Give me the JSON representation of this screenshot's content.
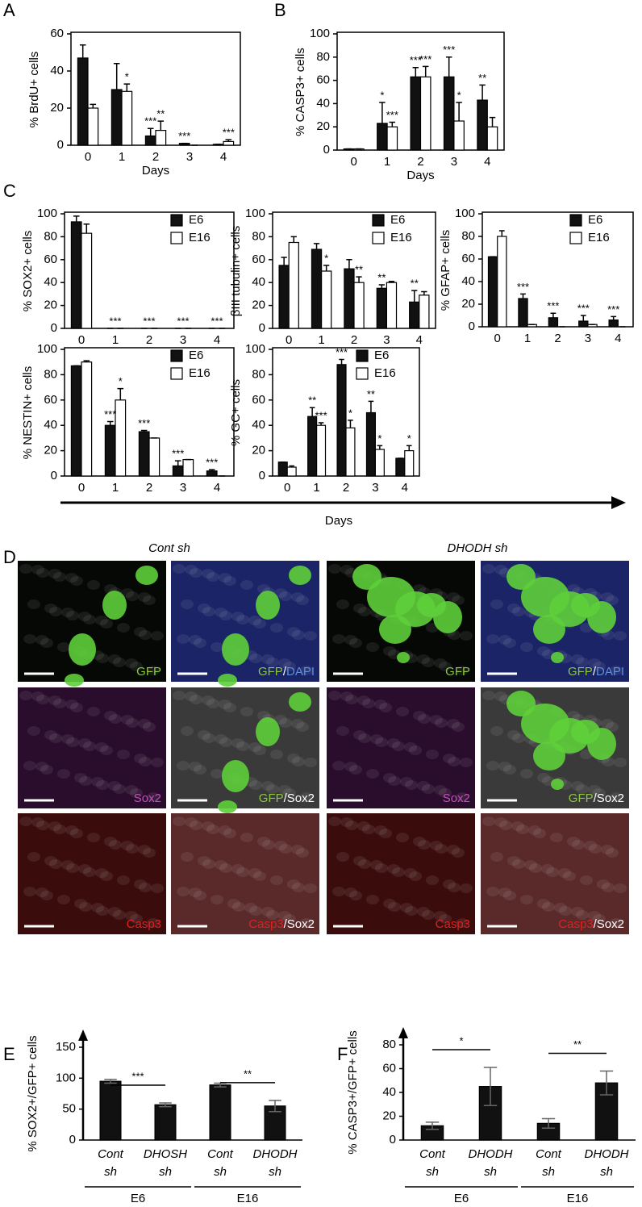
{
  "panel_labels": [
    "A",
    "B",
    "C",
    "D",
    "E",
    "F"
  ],
  "days_arrow_label": "Days",
  "panel_d": {
    "titles": [
      "Cont sh",
      "DHODH sh"
    ],
    "images": [
      {
        "bg": "#050805",
        "gfp": true,
        "label": [
          {
            "text": "GFP",
            "color": "#8cc63f"
          }
        ]
      },
      {
        "bg": "#1b2466",
        "gfp": true,
        "label": [
          {
            "text": "GFP",
            "color": "#8cc63f"
          },
          {
            "text": "/",
            "color": "#ffffff"
          },
          {
            "text": "DAPI",
            "color": "#5b8fe0"
          }
        ]
      },
      {
        "bg": "#050805",
        "gfp": true,
        "label": [
          {
            "text": "GFP",
            "color": "#8cc63f"
          }
        ]
      },
      {
        "bg": "#1b2466",
        "gfp": true,
        "label": [
          {
            "text": "GFP",
            "color": "#8cc63f"
          },
          {
            "text": "/",
            "color": "#ffffff"
          },
          {
            "text": "DAPI",
            "color": "#5b8fe0"
          }
        ]
      },
      {
        "bg": "#2a0c2c",
        "gfp": false,
        "label": [
          {
            "text": "Sox2",
            "color": "#c050c0"
          }
        ]
      },
      {
        "bg": "#3a3a3a",
        "gfp": true,
        "label": [
          {
            "text": "GFP",
            "color": "#8cc63f"
          },
          {
            "text": "/",
            "color": "#ffffff"
          },
          {
            "text": "Sox2",
            "color": "#ffffff"
          }
        ]
      },
      {
        "bg": "#2a0c2c",
        "gfp": false,
        "label": [
          {
            "text": "Sox2",
            "color": "#c050c0"
          }
        ]
      },
      {
        "bg": "#3a3a3a",
        "gfp": true,
        "label": [
          {
            "text": "GFP",
            "color": "#8cc63f"
          },
          {
            "text": "/",
            "color": "#ffffff"
          },
          {
            "text": "Sox2",
            "color": "#ffffff"
          }
        ]
      },
      {
        "bg": "#3a0c0c",
        "gfp": false,
        "label": [
          {
            "text": "Casp3",
            "color": "#e02020"
          }
        ]
      },
      {
        "bg": "#5a2a2a",
        "gfp": false,
        "label": [
          {
            "text": "Casp3",
            "color": "#e02020"
          },
          {
            "text": "/",
            "color": "#ffffff"
          },
          {
            "text": "Sox2",
            "color": "#ffffff"
          }
        ]
      },
      {
        "bg": "#3a0c0c",
        "gfp": false,
        "label": [
          {
            "text": "Casp3",
            "color": "#e02020"
          }
        ]
      },
      {
        "bg": "#5a2a2a",
        "gfp": false,
        "label": [
          {
            "text": "Casp3",
            "color": "#e02020"
          },
          {
            "text": "/",
            "color": "#ffffff"
          },
          {
            "text": "Sox2",
            "color": "#ffffff"
          }
        ]
      }
    ]
  },
  "chart_data": [
    {
      "type": "bar",
      "frame": true,
      "ylabel": "% BrdU+ cells",
      "xlabel": "Days",
      "categories": [
        "0",
        "1",
        "2",
        "3",
        "4"
      ],
      "ylim": [
        0,
        60
      ],
      "yticks": [
        0,
        20,
        40,
        60
      ],
      "errorbars": "up",
      "error_color": "#000000",
      "series": [
        {
          "color": "#111111",
          "values": [
            47,
            30,
            5,
            1,
            0.5
          ],
          "errors": [
            7,
            14,
            4,
            0,
            0
          ]
        },
        {
          "color": "#ffffff",
          "values": [
            20,
            29,
            8,
            0,
            2
          ],
          "errors": [
            2,
            4,
            5,
            0,
            1
          ]
        }
      ],
      "annotations": [
        {
          "text": "*",
          "series": 1,
          "index": 1
        },
        {
          "text": "***",
          "series": 0,
          "index": 2
        },
        {
          "text": "**",
          "series": 1,
          "index": 2
        },
        {
          "text": "***",
          "series": 0,
          "index": 3
        },
        {
          "text": "***",
          "series": 1,
          "index": 4
        }
      ]
    },
    {
      "type": "bar",
      "frame": true,
      "ylabel": "% CASP3+ cells",
      "xlabel": "Days",
      "categories": [
        "0",
        "1",
        "2",
        "3",
        "4"
      ],
      "ylim": [
        0,
        100
      ],
      "yticks": [
        0,
        20,
        40,
        60,
        80,
        100
      ],
      "errorbars": "up",
      "error_color": "#000000",
      "series": [
        {
          "color": "#111111",
          "values": [
            1,
            23,
            63,
            63,
            43
          ],
          "errors": [
            0,
            18,
            8,
            17,
            13
          ]
        },
        {
          "color": "#ffffff",
          "values": [
            1,
            20,
            63,
            25,
            20
          ],
          "errors": [
            0,
            4,
            9,
            16,
            8
          ]
        }
      ],
      "annotations": [
        {
          "text": "*",
          "series": 0,
          "index": 1
        },
        {
          "text": "***",
          "series": 1,
          "index": 1
        },
        {
          "text": "***",
          "series": 0,
          "index": 2
        },
        {
          "text": "***",
          "series": 1,
          "index": 2
        },
        {
          "text": "***",
          "series": 0,
          "index": 3
        },
        {
          "text": "*",
          "series": 1,
          "index": 3
        },
        {
          "text": "**",
          "series": 0,
          "index": 4
        }
      ]
    },
    {
      "type": "bar",
      "frame": true,
      "ylabel": "% SOX2+ cells",
      "categories": [
        "0",
        "1",
        "2",
        "3",
        "4"
      ],
      "ylim": [
        0,
        100
      ],
      "yticks": [
        0,
        20,
        40,
        60,
        80,
        100
      ],
      "errorbars": "up",
      "error_color": "#000000",
      "legend": "upper right",
      "series": [
        {
          "name": "E6",
          "color": "#111111",
          "values": [
            93,
            0,
            0,
            0,
            0
          ],
          "errors": [
            5,
            0,
            0,
            0,
            0
          ]
        },
        {
          "name": "E16",
          "color": "#ffffff",
          "values": [
            83,
            0,
            0,
            0,
            0
          ],
          "errors": [
            8,
            0,
            0,
            0,
            0
          ]
        }
      ],
      "annotations": [
        {
          "text": "***",
          "index": 1
        },
        {
          "text": "***",
          "index": 2
        },
        {
          "text": "***",
          "index": 3
        },
        {
          "text": "***",
          "index": 4
        }
      ]
    },
    {
      "type": "bar",
      "frame": true,
      "ylabel": "βIII tubulin+ cells",
      "categories": [
        "0",
        "1",
        "2",
        "3",
        "4"
      ],
      "ylim": [
        0,
        100
      ],
      "yticks": [
        0,
        20,
        40,
        60,
        80,
        100
      ],
      "errorbars": "up",
      "error_color": "#000000",
      "legend": "upper right",
      "series": [
        {
          "name": "E6",
          "color": "#111111",
          "values": [
            55,
            69,
            52,
            35,
            23
          ],
          "errors": [
            7,
            5,
            8,
            3,
            10
          ]
        },
        {
          "name": "E16",
          "color": "#ffffff",
          "values": [
            75,
            50,
            40,
            40,
            29
          ],
          "errors": [
            5,
            5,
            5,
            1,
            3
          ]
        }
      ],
      "annotations": [
        {
          "text": "*",
          "series": 1,
          "index": 1
        },
        {
          "text": "**",
          "series": 1,
          "index": 2
        },
        {
          "text": "**",
          "series": 0,
          "index": 3
        },
        {
          "text": "**",
          "series": 0,
          "index": 4
        }
      ]
    },
    {
      "type": "bar",
      "frame": true,
      "ylabel": "% GFAP+ cells",
      "categories": [
        "0",
        "1",
        "2",
        "3",
        "4"
      ],
      "ylim": [
        0,
        100
      ],
      "yticks": [
        0,
        20,
        40,
        60,
        80,
        100
      ],
      "errorbars": "up",
      "error_color": "#000000",
      "legend": "upper right",
      "series": [
        {
          "name": "E6",
          "color": "#111111",
          "values": [
            62,
            25,
            8,
            5,
            6
          ],
          "errors": [
            0,
            4,
            4,
            5,
            3
          ]
        },
        {
          "name": "E16",
          "color": "#ffffff",
          "values": [
            80,
            2,
            0,
            2,
            0
          ],
          "errors": [
            5,
            0,
            0,
            0,
            0
          ]
        }
      ],
      "annotations": [
        {
          "text": "***",
          "series": 0,
          "index": 1
        },
        {
          "text": "***",
          "series": 0,
          "index": 2
        },
        {
          "text": "***",
          "series": 0,
          "index": 3
        },
        {
          "text": "***",
          "series": 0,
          "index": 4
        }
      ]
    },
    {
      "type": "bar",
      "frame": true,
      "ylabel": "% NESTIN+ cells",
      "categories": [
        "0",
        "1",
        "2",
        "3",
        "4"
      ],
      "ylim": [
        0,
        100
      ],
      "yticks": [
        0,
        20,
        40,
        60,
        80,
        100
      ],
      "errorbars": "up",
      "error_color": "#000000",
      "legend": "upper right",
      "series": [
        {
          "name": "E6",
          "color": "#111111",
          "values": [
            87,
            40,
            35,
            8,
            4
          ],
          "errors": [
            0,
            3,
            1,
            4,
            1
          ]
        },
        {
          "name": "E16",
          "color": "#ffffff",
          "values": [
            90,
            60,
            30,
            13,
            0
          ],
          "errors": [
            1,
            9,
            0,
            0,
            0
          ]
        }
      ],
      "annotations": [
        {
          "text": "***",
          "series": 0,
          "index": 1
        },
        {
          "text": "*",
          "series": 1,
          "index": 1
        },
        {
          "text": "***",
          "series": 0,
          "index": 2
        },
        {
          "text": "***",
          "series": 0,
          "index": 3
        },
        {
          "text": "***",
          "series": 0,
          "index": 4
        }
      ]
    },
    {
      "type": "bar",
      "frame": true,
      "ylabel": "% GC+ cells",
      "categories": [
        "0",
        "1",
        "2",
        "3",
        "4"
      ],
      "ylim": [
        0,
        100
      ],
      "yticks": [
        0,
        20,
        40,
        60,
        80,
        100
      ],
      "errorbars": "up",
      "error_color": "#000000",
      "legend": "upper right",
      "series": [
        {
          "name": "E6",
          "color": "#111111",
          "values": [
            11,
            47,
            88,
            50,
            14
          ],
          "errors": [
            0,
            7,
            4,
            9,
            0
          ]
        },
        {
          "name": "E16",
          "color": "#ffffff",
          "values": [
            7,
            40,
            38,
            21,
            20
          ],
          "errors": [
            1,
            2,
            6,
            3,
            4
          ]
        }
      ],
      "annotations": [
        {
          "text": "**",
          "series": 0,
          "index": 1
        },
        {
          "text": "***",
          "series": 1,
          "index": 1
        },
        {
          "text": "***",
          "series": 0,
          "index": 2
        },
        {
          "text": "*",
          "series": 1,
          "index": 2
        },
        {
          "text": "**",
          "series": 0,
          "index": 3
        },
        {
          "text": "*",
          "series": 1,
          "index": 3
        },
        {
          "text": "*",
          "series": 1,
          "index": 4
        }
      ]
    },
    {
      "type": "bar",
      "frame": false,
      "ylabel": "% SOX2+/GFP+ cells",
      "categories": [
        [
          "Cont",
          "sh"
        ],
        [
          "DHOSH",
          "sh"
        ],
        [
          "Cont",
          "sh"
        ],
        [
          "DHODH",
          "sh"
        ]
      ],
      "ylim": [
        0,
        150
      ],
      "yticks": [
        0,
        50,
        100,
        150
      ],
      "errorbars": "both",
      "error_color": "#666666",
      "series": [
        {
          "color": "#111111",
          "values": [
            95,
            57,
            89,
            55
          ],
          "errors": [
            3,
            3,
            3,
            9
          ]
        }
      ],
      "brackets": [
        {
          "text": "***",
          "from": 0,
          "to": 1
        },
        {
          "text": "**",
          "from": 2,
          "to": 3
        }
      ],
      "groups": [
        {
          "name": "E6",
          "from": 0,
          "to": 1
        },
        {
          "name": "E16",
          "from": 2,
          "to": 3
        }
      ]
    },
    {
      "type": "bar",
      "frame": false,
      "ylabel": "% CASP3+/GFP+ cells",
      "categories": [
        [
          "Cont",
          "sh"
        ],
        [
          "DHODH",
          "sh"
        ],
        [
          "Cont",
          "sh"
        ],
        [
          "DHODH",
          "sh"
        ]
      ],
      "ylim": [
        0,
        80
      ],
      "yticks": [
        0,
        20,
        40,
        60,
        80
      ],
      "errorbars": "both",
      "error_color": "#666666",
      "series": [
        {
          "color": "#111111",
          "values": [
            12,
            45,
            14,
            48
          ],
          "errors": [
            3,
            16,
            4,
            10
          ]
        }
      ],
      "brackets": [
        {
          "text": "*",
          "from": 0,
          "to": 1
        },
        {
          "text": "**",
          "from": 2,
          "to": 3
        }
      ],
      "groups": [
        {
          "name": "E6",
          "from": 0,
          "to": 1
        },
        {
          "name": "E16",
          "from": 2,
          "to": 3
        }
      ]
    }
  ]
}
